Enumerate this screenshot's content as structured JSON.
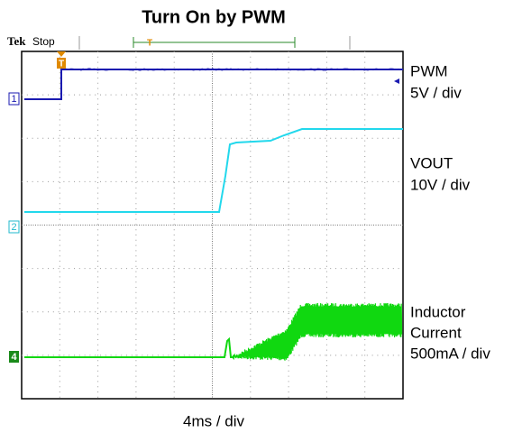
{
  "header": {
    "title": "Turn On by PWM"
  },
  "scope_status": {
    "brand": "Tek",
    "state": "Stop"
  },
  "trigger_label": "T",
  "channels": [
    {
      "marker": "1",
      "name": [
        "PWM"
      ],
      "scale": "5V / div"
    },
    {
      "marker": "2",
      "name": [
        "VOUT"
      ],
      "scale": "10V / div"
    },
    {
      "marker": "4",
      "name": [
        "Inductor",
        "Current"
      ],
      "scale": "500mA / div"
    }
  ],
  "time_scale": "4ms / div"
}
